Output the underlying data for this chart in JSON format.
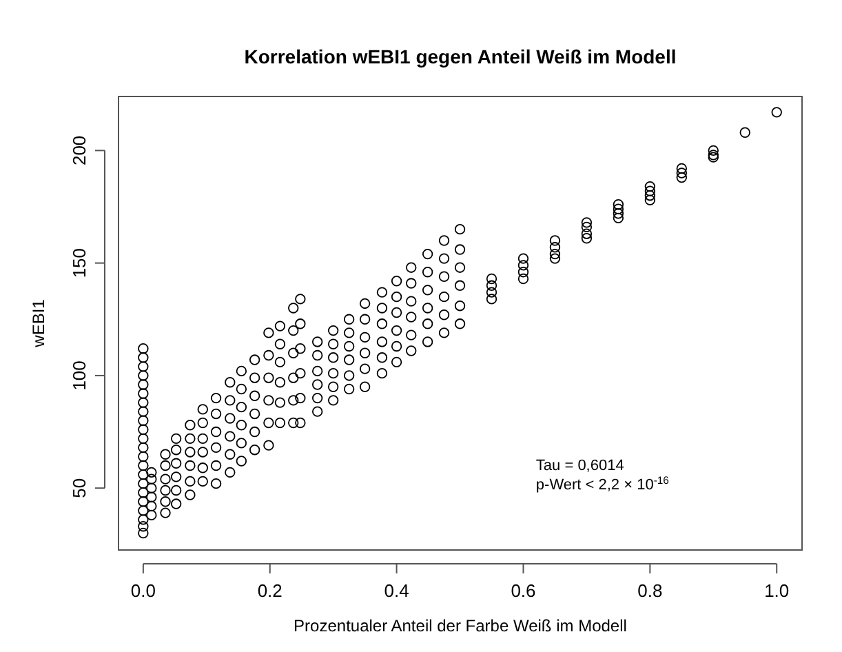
{
  "chart_data": {
    "type": "scatter",
    "title": "Korrelation wEBI1 gegen Anteil Weiß im Modell",
    "xlabel": "Prozentualer Anteil der Farbe Weiß im Modell",
    "ylabel": "wEBI1",
    "annotations": [
      "Tau = 0,6014",
      "p-Wert < 2,2 × 10$^{-16}$"
    ],
    "xlim": [
      -0.039,
      1.04
    ],
    "ylim": [
      22.5,
      224
    ],
    "xticks": [
      {
        "value": 0,
        "label": "0.0"
      },
      0.2,
      0.4,
      0.6,
      0.8,
      {
        "value": 1,
        "label": "1.0"
      }
    ],
    "yticks": [
      50,
      100,
      150,
      200
    ],
    "marker": "circle",
    "grid": false,
    "series": [
      {
        "color": "#000000",
        "x": [
          0,
          0,
          0,
          0,
          0,
          0,
          0,
          0,
          0,
          0,
          0,
          0,
          0,
          0,
          0,
          0,
          0,
          0,
          0,
          0,
          0,
          0,
          0.013,
          0.013,
          0.013,
          0.013,
          0.013,
          0.013,
          0.035,
          0.035,
          0.035,
          0.035,
          0.035,
          0.035,
          0.052,
          0.052,
          0.052,
          0.052,
          0.052,
          0.052,
          0.074,
          0.074,
          0.074,
          0.074,
          0.074,
          0.074,
          0.094,
          0.094,
          0.094,
          0.094,
          0.094,
          0.094,
          0.115,
          0.115,
          0.115,
          0.115,
          0.115,
          0.115,
          0.137,
          0.137,
          0.137,
          0.137,
          0.137,
          0.137,
          0.155,
          0.155,
          0.155,
          0.155,
          0.155,
          0.155,
          0.176,
          0.176,
          0.176,
          0.176,
          0.176,
          0.176,
          0.198,
          0.198,
          0.198,
          0.198,
          0.198,
          0.198,
          0.216,
          0.216,
          0.216,
          0.216,
          0.216,
          0.216,
          0.237,
          0.237,
          0.237,
          0.237,
          0.237,
          0.237,
          0.248,
          0.248,
          0.248,
          0.248,
          0.248,
          0.248,
          0.275,
          0.275,
          0.275,
          0.275,
          0.275,
          0.275,
          0.3,
          0.3,
          0.3,
          0.3,
          0.3,
          0.3,
          0.325,
          0.325,
          0.325,
          0.325,
          0.325,
          0.325,
          0.35,
          0.35,
          0.35,
          0.35,
          0.35,
          0.35,
          0.377,
          0.377,
          0.377,
          0.377,
          0.377,
          0.377,
          0.4,
          0.4,
          0.4,
          0.4,
          0.4,
          0.4,
          0.423,
          0.423,
          0.423,
          0.423,
          0.423,
          0.423,
          0.449,
          0.449,
          0.449,
          0.449,
          0.449,
          0.449,
          0.475,
          0.475,
          0.475,
          0.475,
          0.475,
          0.475,
          0.5,
          0.5,
          0.5,
          0.5,
          0.5,
          0.5,
          0.55,
          0.55,
          0.55,
          0.55,
          0.6,
          0.6,
          0.6,
          0.6,
          0.65,
          0.65,
          0.65,
          0.65,
          0.7,
          0.7,
          0.7,
          0.7,
          0.75,
          0.75,
          0.75,
          0.75,
          0.8,
          0.8,
          0.8,
          0.8,
          0.85,
          0.85,
          0.85,
          0.9,
          0.9,
          0.9,
          0.95,
          1.0
        ],
        "values": [
          30,
          33,
          36,
          40,
          44,
          48,
          52,
          56,
          60,
          64,
          68,
          72,
          76,
          80,
          84,
          88,
          92,
          96,
          100,
          104,
          108,
          112,
          38,
          42,
          46,
          50,
          54,
          57,
          39,
          44,
          49,
          54,
          60,
          65,
          43,
          49,
          55,
          61,
          67,
          72,
          47,
          53,
          60,
          66,
          72,
          78,
          53,
          59,
          66,
          72,
          79,
          85,
          52,
          60,
          68,
          75,
          83,
          90,
          57,
          65,
          73,
          81,
          89,
          97,
          62,
          70,
          78,
          86,
          94,
          102,
          67,
          75,
          83,
          91,
          99,
          107,
          69,
          79,
          89,
          99,
          109,
          119,
          79,
          88,
          97,
          106,
          114,
          122,
          79,
          89,
          99,
          110,
          120,
          130,
          79,
          90,
          101,
          112,
          123,
          134,
          84,
          90,
          96,
          102,
          109,
          115,
          89,
          95,
          101,
          108,
          114,
          120,
          94,
          100,
          107,
          113,
          119,
          125,
          95,
          103,
          110,
          117,
          125,
          132,
          101,
          108,
          115,
          123,
          130,
          137,
          106,
          113,
          120,
          128,
          135,
          142,
          111,
          118,
          126,
          133,
          141,
          148,
          115,
          123,
          130,
          138,
          146,
          154,
          119,
          127,
          135,
          144,
          152,
          160,
          123,
          131,
          140,
          148,
          156,
          165,
          134,
          137,
          140,
          143,
          143,
          146,
          149,
          152,
          152,
          154,
          157,
          160,
          161,
          163,
          166,
          168,
          170,
          172,
          174,
          176,
          178,
          180,
          182,
          184,
          188,
          190,
          192,
          197,
          198,
          200,
          208,
          217
        ]
      }
    ]
  }
}
